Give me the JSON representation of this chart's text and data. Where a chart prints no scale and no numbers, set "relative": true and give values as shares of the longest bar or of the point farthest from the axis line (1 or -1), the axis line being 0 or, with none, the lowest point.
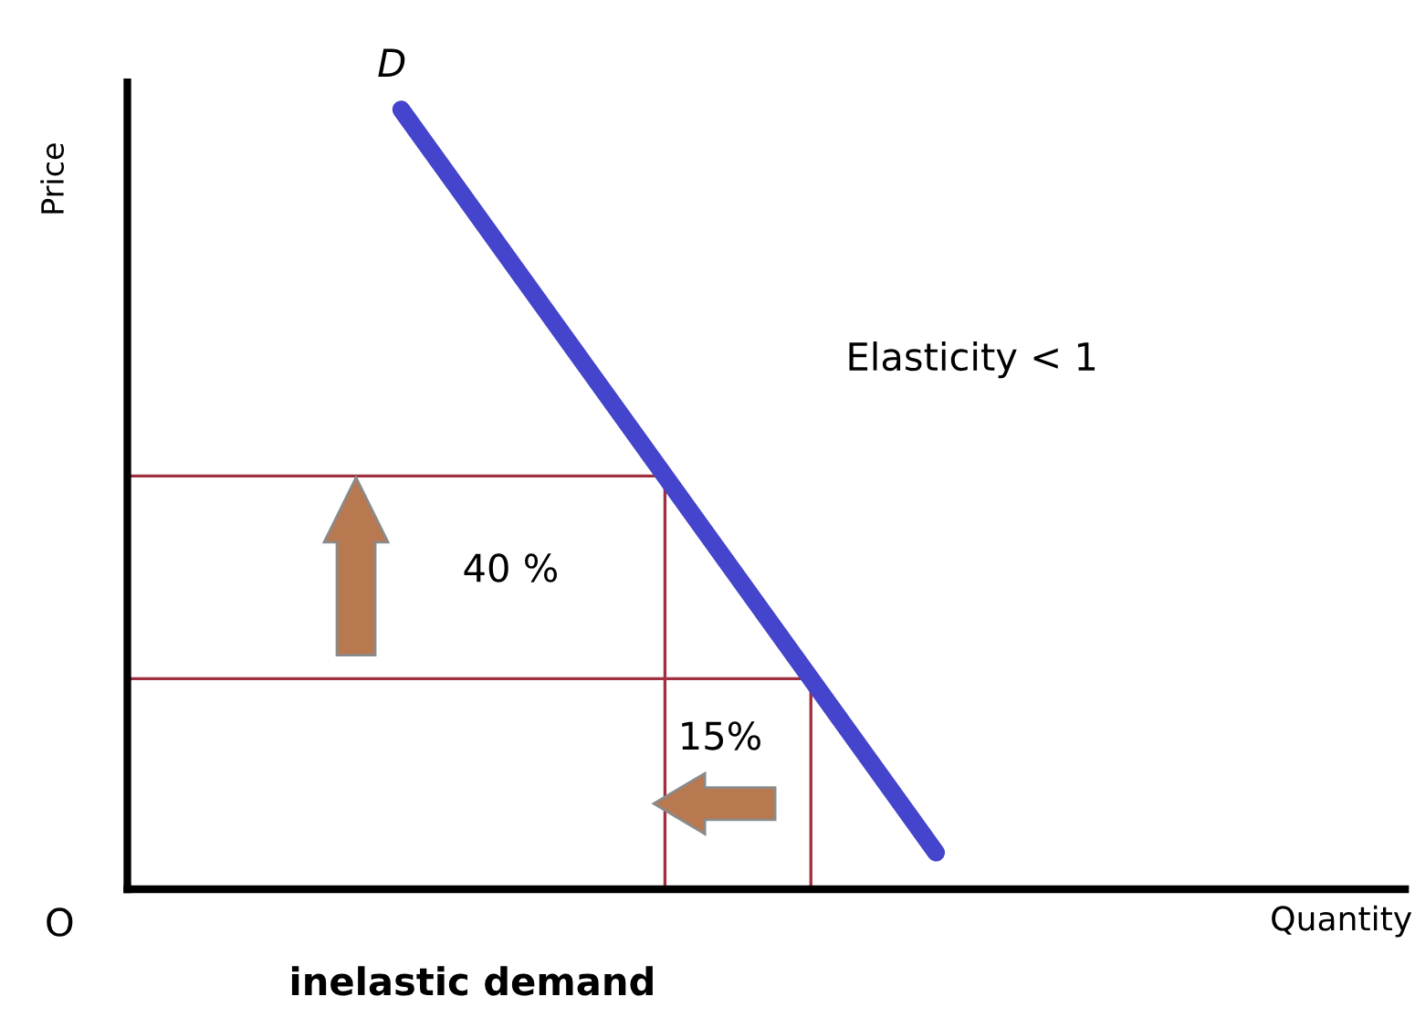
{
  "chart_data": {
    "type": "line",
    "relative": true,
    "title": "inelastic demand",
    "xlabel": "Quantity",
    "ylabel": "Price",
    "categories": [
      null,
      null
    ],
    "marker": "none",
    "line_style": "solid",
    "series": [
      {
        "color": "#4444cc",
        "values": [
          1,
          0.047
        ]
      }
    ],
    "ref_lines": [
      {
        "axis": "y",
        "value": 0.53,
        "color": "#a03040"
      },
      {
        "axis": "y",
        "value": 0.27,
        "color": "#a03040"
      }
    ],
    "annotations": [
      "D",
      "Elasticity < 1",
      "40 %",
      "15%",
      "O"
    ]
  }
}
